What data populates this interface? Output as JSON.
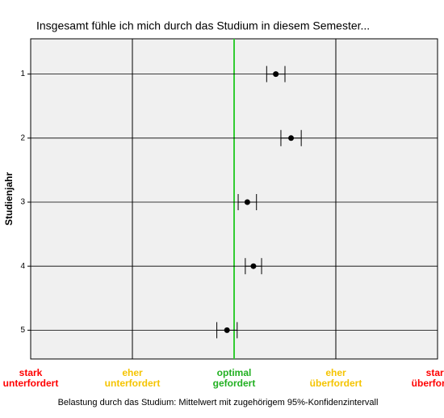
{
  "chart_data": {
    "type": "dot-errorbar",
    "title": "Insgesamt fühle ich mich durch das Studium in diesem Semester...",
    "y_label": "Studienjahr",
    "x_label": "Belastung durch das Studium: Mittelwert mit zugehörigem 95%-Konfidenzintervall",
    "categories": [
      "1",
      "2",
      "3",
      "4",
      "5"
    ],
    "values": [
      3.41,
      3.56,
      3.13,
      3.19,
      2.93
    ],
    "errors": [
      0.09,
      0.1,
      0.09,
      0.08,
      0.1
    ],
    "color": "#000000",
    "xlim": [
      1,
      5
    ],
    "xticks": [
      {
        "value": 1,
        "label": "stark\nunterfordert"
      },
      {
        "value": 2,
        "label": "eher\nunterfordert"
      },
      {
        "value": 3,
        "label": "optimal\ngefordert"
      },
      {
        "value": 4,
        "label": "eher\nüberfordert"
      },
      {
        "value": 5,
        "label": "stark\nüberfordert"
      }
    ],
    "xtick_colors": [
      "#ff0000",
      "#f5c400",
      "#22b022",
      "#f5c400",
      "#ff0000"
    ],
    "reference_x": 3,
    "reference_color": "#33cc33",
    "grid": true
  }
}
